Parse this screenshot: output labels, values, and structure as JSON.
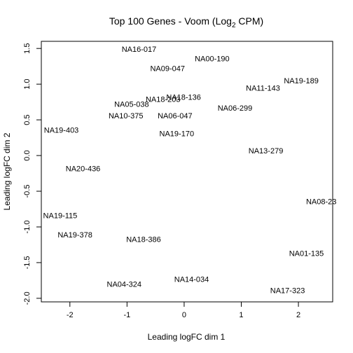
{
  "chart_data": {
    "type": "scatter",
    "title": "Top 100 Genes - Voom (Log2 CPM)",
    "title_parts": {
      "main": "Top 100 Genes - Voom (Log",
      "sub": "2",
      "tail": " CPM)"
    },
    "xlabel": "Leading logFC dim 1",
    "ylabel": "Leading logFC dim 2",
    "xlim": [
      -2.5,
      2.6
    ],
    "ylim": [
      -2.05,
      1.6
    ],
    "x_ticks": [
      -2,
      -1,
      0,
      1,
      2
    ],
    "x_tick_labels": [
      "-2",
      "-1",
      "0",
      "1",
      "2"
    ],
    "y_ticks": [
      -2.0,
      -1.5,
      -1.0,
      -0.5,
      0.0,
      0.5,
      1.0,
      1.5
    ],
    "y_tick_labels": [
      "-2.0",
      "-1.5",
      "-1.0",
      "-0.5",
      "0.0",
      "0.5",
      "1.0",
      "1.5"
    ],
    "grid": false,
    "legend": "none",
    "points": [
      {
        "label": "NA16-017",
        "x": -0.79,
        "y": 1.48
      },
      {
        "label": "NA00-190",
        "x": 0.49,
        "y": 1.35
      },
      {
        "label": "NA09-047",
        "x": -0.29,
        "y": 1.21
      },
      {
        "label": "NA19-189",
        "x": 2.05,
        "y": 1.04
      },
      {
        "label": "NA11-143",
        "x": 1.38,
        "y": 0.94
      },
      {
        "label": "NA18-136",
        "x": -0.01,
        "y": 0.81
      },
      {
        "label": "NA18-203",
        "x": -0.37,
        "y": 0.78
      },
      {
        "label": "NA05-038",
        "x": -0.92,
        "y": 0.71
      },
      {
        "label": "NA06-299",
        "x": 0.89,
        "y": 0.66
      },
      {
        "label": "NA10-375",
        "x": -1.02,
        "y": 0.55
      },
      {
        "label": "NA06-047",
        "x": -0.16,
        "y": 0.55
      },
      {
        "label": "NA19-403",
        "x": -2.15,
        "y": 0.35
      },
      {
        "label": "NA19-170",
        "x": -0.13,
        "y": 0.3
      },
      {
        "label": "NA13-279",
        "x": 1.43,
        "y": 0.06
      },
      {
        "label": "NA20-436",
        "x": -1.77,
        "y": -0.19
      },
      {
        "label": "NA08-23",
        "x": 2.4,
        "y": -0.65
      },
      {
        "label": "NA19-115",
        "x": -2.17,
        "y": -0.85
      },
      {
        "label": "NA19-378",
        "x": -1.91,
        "y": -1.12
      },
      {
        "label": "NA18-386",
        "x": -0.71,
        "y": -1.18
      },
      {
        "label": "NA01-135",
        "x": 2.14,
        "y": -1.38
      },
      {
        "label": "NA14-034",
        "x": 0.13,
        "y": -1.74
      },
      {
        "label": "NA04-324",
        "x": -1.05,
        "y": -1.81
      },
      {
        "label": "NA17-323",
        "x": 1.81,
        "y": -1.9
      }
    ]
  }
}
